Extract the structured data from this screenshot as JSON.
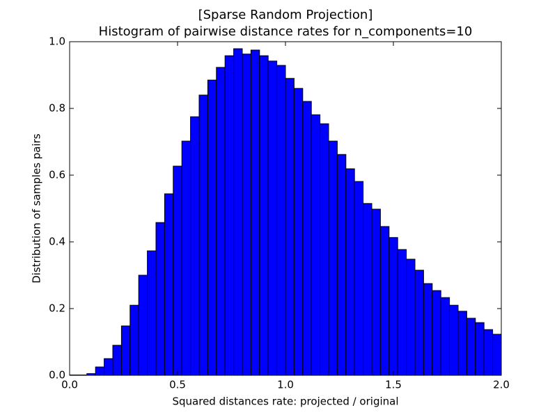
{
  "chart_data": {
    "type": "histogram",
    "title_lines": [
      "[Sparse Random Projection]",
      "Histogram of pairwise distance rates for n_components=10"
    ],
    "xlabel": "Squared distances rate: projected / original",
    "ylabel": "Distribution of samples pairs",
    "color": "#0000ff",
    "edgecolor": "#000000",
    "bins": [
      0,
      0.04,
      0.08,
      0.12,
      0.16,
      0.2,
      0.24,
      0.28,
      0.32,
      0.36,
      0.4,
      0.44,
      0.48,
      0.52,
      0.56,
      0.6,
      0.64,
      0.68,
      0.72,
      0.76,
      0.8,
      0.84,
      0.88,
      0.92,
      0.96,
      1.0,
      1.04,
      1.08,
      1.12,
      1.16,
      1.2,
      1.24,
      1.28,
      1.32,
      1.36,
      1.4,
      1.44,
      1.48,
      1.52,
      1.56,
      1.6,
      1.64,
      1.68,
      1.72,
      1.76,
      1.8,
      1.84,
      1.88,
      1.92,
      1.96,
      2.0
    ],
    "counts": [
      0.001,
      0.001,
      0.005,
      0.025,
      0.05,
      0.09,
      0.148,
      0.21,
      0.3,
      0.373,
      0.458,
      0.544,
      0.627,
      0.702,
      0.775,
      0.84,
      0.885,
      0.923,
      0.958,
      0.979,
      0.963,
      0.975,
      0.958,
      0.942,
      0.929,
      0.89,
      0.86,
      0.821,
      0.781,
      0.754,
      0.702,
      0.662,
      0.619,
      0.581,
      0.515,
      0.498,
      0.446,
      0.413,
      0.377,
      0.348,
      0.315,
      0.275,
      0.254,
      0.233,
      0.21,
      0.192,
      0.171,
      0.158,
      0.137,
      0.123
    ],
    "xlim": [
      0,
      2.0
    ],
    "ylim": [
      0,
      1.0
    ],
    "xticks": [
      {
        "value": 0,
        "label": "0.0"
      },
      {
        "value": 0.5,
        "label": "0.5"
      },
      {
        "value": 1.0,
        "label": "1.0"
      },
      {
        "value": 1.5,
        "label": "1.5"
      },
      {
        "value": 2.0,
        "label": "2.0"
      }
    ],
    "yticks": [
      {
        "value": 0,
        "label": "0.0"
      },
      0.2,
      0.4,
      0.6,
      0.8,
      {
        "value": 1.0,
        "label": "1.0"
      }
    ]
  }
}
